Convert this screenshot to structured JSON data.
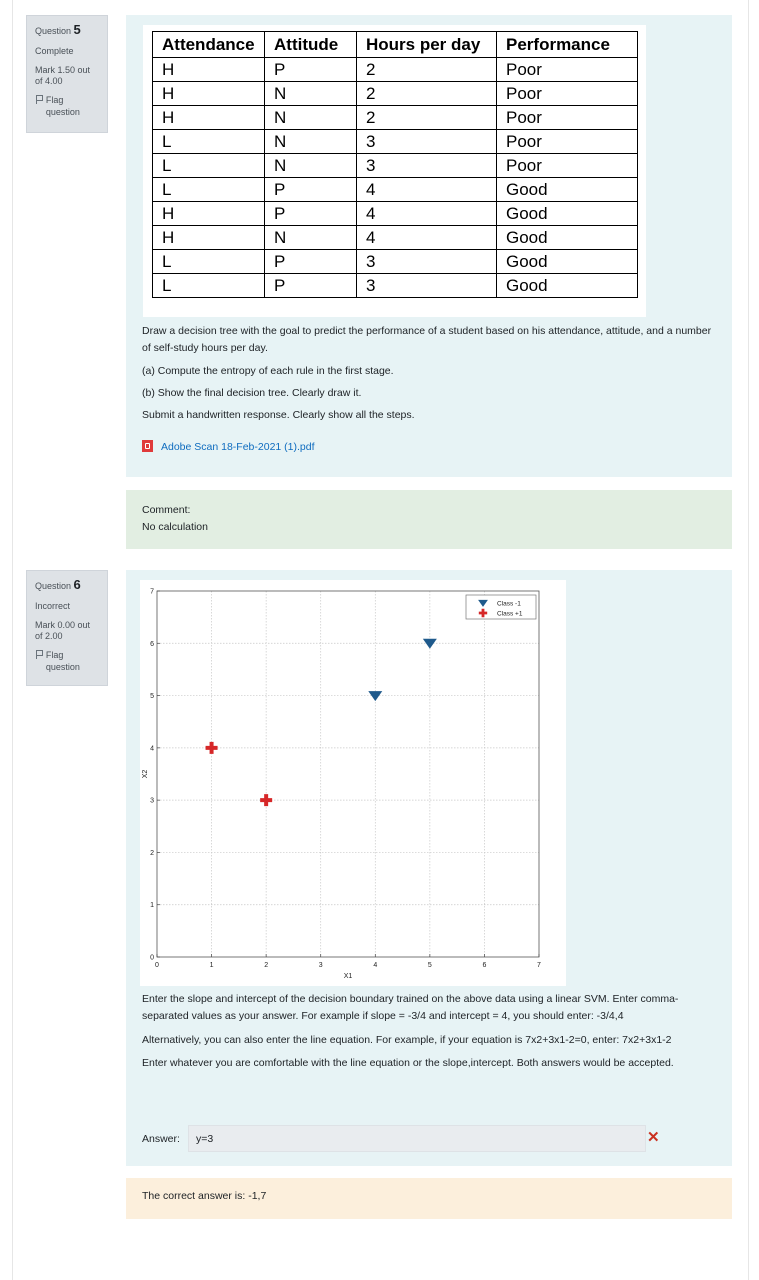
{
  "q5": {
    "label": "Question",
    "number": "5",
    "state": "Complete",
    "mark": "Mark 1.50 out of 4.00",
    "flag_label": "Flag question",
    "table": {
      "headers": [
        "Attendance",
        "Attitude",
        "Hours per day",
        "Performance"
      ],
      "rows": [
        [
          "H",
          "P",
          "2",
          "Poor"
        ],
        [
          "H",
          "N",
          "2",
          "Poor"
        ],
        [
          "H",
          "N",
          "2",
          "Poor"
        ],
        [
          "L",
          "N",
          "3",
          "Poor"
        ],
        [
          "L",
          "N",
          "3",
          "Poor"
        ],
        [
          "L",
          "P",
          "4",
          "Good"
        ],
        [
          "H",
          "P",
          "4",
          "Good"
        ],
        [
          "H",
          "N",
          "4",
          "Good"
        ],
        [
          "L",
          "P",
          "3",
          "Good"
        ],
        [
          "L",
          "P",
          "3",
          "Good"
        ]
      ]
    },
    "text1": "Draw a decision tree with the goal to predict the performance of a student based on his attendance, attitude, and a number of self-study hours per day.",
    "text2": "(a) Compute the entropy of each rule in the first stage.",
    "text3": "(b) Show the final decision tree. Clearly draw it.",
    "text4": "Submit a handwritten response. Clearly show all the steps.",
    "attachment": "Adobe Scan 18-Feb-2021 (1).pdf",
    "comment_label": "Comment:",
    "comment_text": "No calculation"
  },
  "q6": {
    "label": "Question",
    "number": "6",
    "state": "Incorrect",
    "mark": "Mark 0.00 out of 2.00",
    "flag_label": "Flag question",
    "text1": "Enter the slope and intercept of the decision boundary trained on the above data using a linear SVM. Enter comma-separated values as your answer. For example if slope = -3/4 and intercept = 4, you should enter: -3/4,4",
    "text2": "Alternatively, you can also enter the line equation. For example, if your equation is 7x2+3x1-2=0, enter: 7x2+3x1-2",
    "text3": "Enter whatever you are comfortable with the line equation or the slope,intercept. Both answers would be accepted.",
    "answer_label": "Answer:",
    "answer_value": "y=3",
    "correct_answer": "The correct answer is: -1,7"
  },
  "chart_data": {
    "type": "scatter",
    "xlabel": "X1",
    "ylabel": "X2",
    "xlim": [
      0,
      7
    ],
    "ylim": [
      0,
      7
    ],
    "xticks": [
      "0",
      "1",
      "2",
      "3",
      "4",
      "5",
      "6",
      "7"
    ],
    "yticks": [
      "0",
      "1",
      "2",
      "3",
      "4",
      "5",
      "6",
      "7"
    ],
    "grid": true,
    "legend_position": "top-right",
    "series": [
      {
        "name": "Class -1",
        "marker": "triangle-down",
        "color": "#1f5a8c",
        "points": [
          [
            4,
            5
          ],
          [
            5,
            6
          ]
        ]
      },
      {
        "name": "Class +1",
        "marker": "plus",
        "color": "#d62728",
        "points": [
          [
            1,
            4
          ],
          [
            2,
            3
          ]
        ]
      }
    ]
  }
}
